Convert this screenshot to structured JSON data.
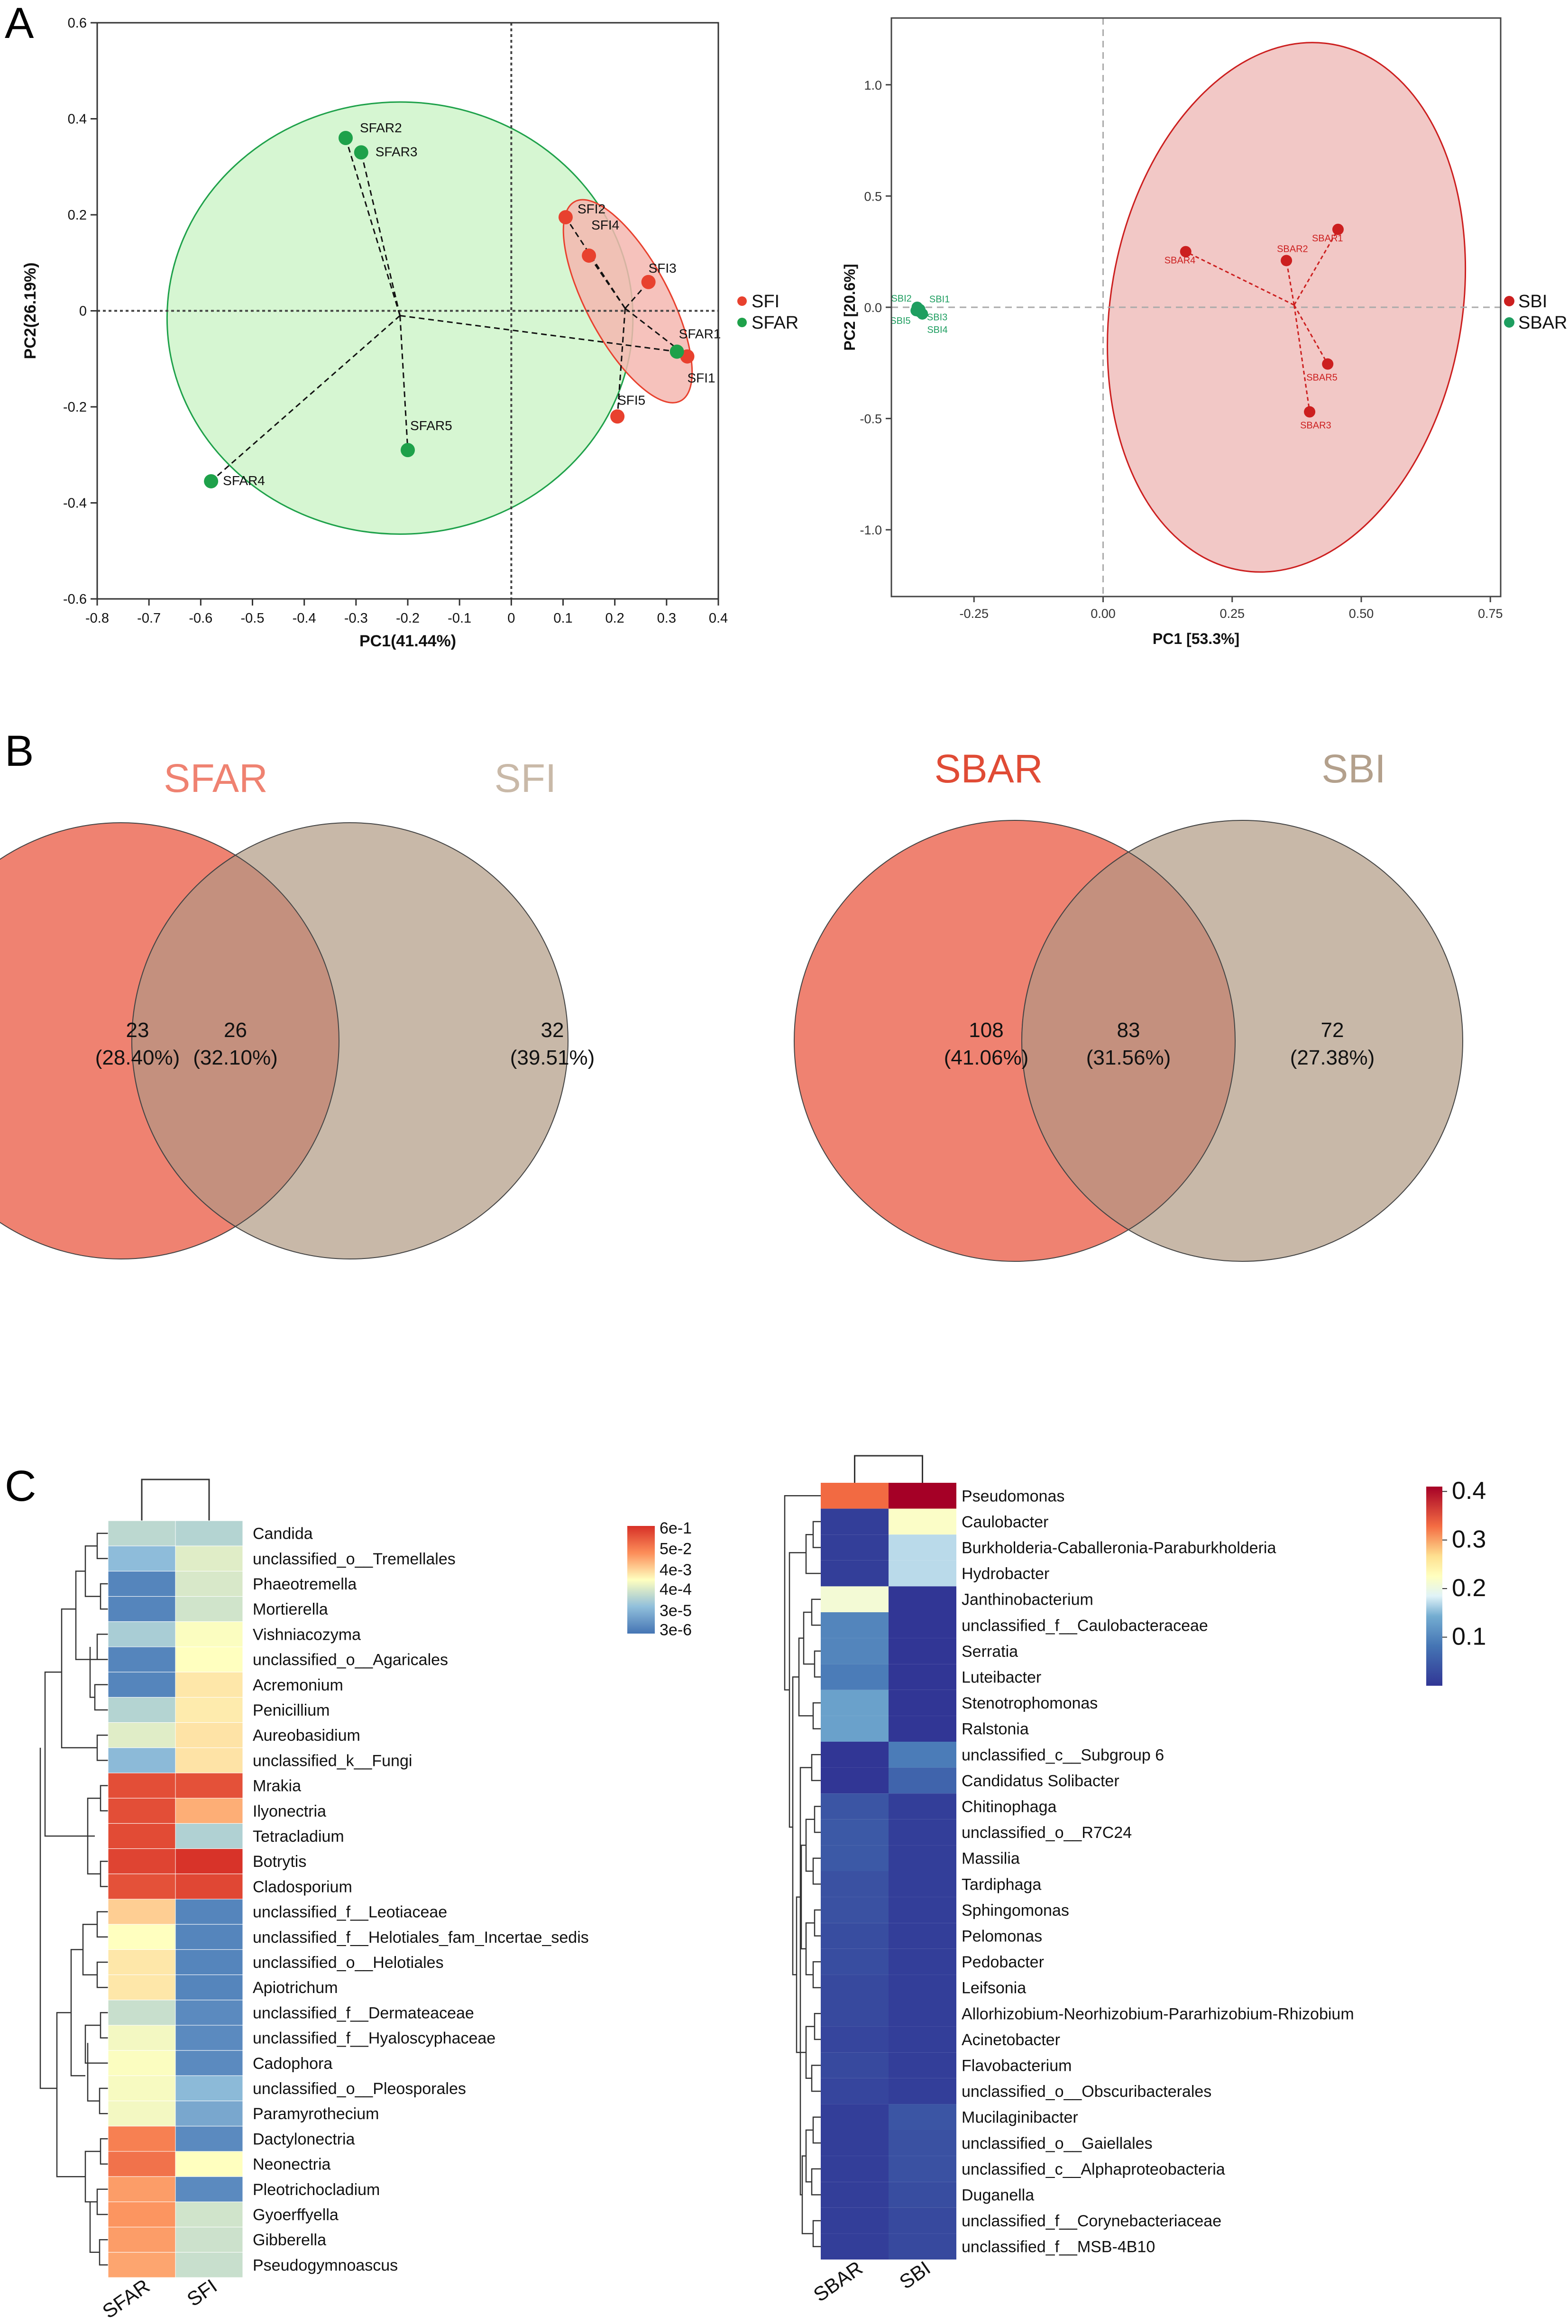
{
  "panel_labels": {
    "a": "A",
    "b": "B",
    "c": "C"
  },
  "colors": {
    "sfi": "#e8412e",
    "sfar": "#1ea14a",
    "sfi_fill": "#f4b7b0",
    "sfar_fill": "#d6f6d2",
    "sbi": "#cc1f1f",
    "sbar": "#1e9e60",
    "sbi_fill": "#f2c8c6",
    "venn_left": "#ef8271",
    "venn_right": "#c8b8a8",
    "venn_overlap": "#c4907e",
    "venn_sfar_title": "#ef8271",
    "venn_sfi_title": "#c9b9a8",
    "venn_sbar_title": "#e04b35",
    "venn_sbi_title": "#b3a08c"
  },
  "chart_data": [
    {
      "id": "pca_fungi",
      "type": "scatter",
      "xlabel": "PC1(41.44%)",
      "ylabel": "PC2(26.19%)",
      "xlim": [
        -0.8,
        0.4
      ],
      "ylim": [
        -0.6,
        0.6
      ],
      "xticks": [
        "-0.8",
        "-0.7",
        "-0.6",
        "-0.5",
        "-0.4",
        "-0.3",
        "-0.2",
        "-0.1",
        "0",
        "0.1",
        "0.2",
        "0.3",
        "0.4"
      ],
      "yticks": [
        "-0.6",
        "-0.4",
        "-0.2",
        "0",
        "0.2",
        "0.4",
        "0.6"
      ],
      "legend": [
        "SFI",
        "SFAR"
      ],
      "series": [
        {
          "name": "SFI",
          "points": [
            {
              "label": "SFI1",
              "x": 0.34,
              "y": -0.095
            },
            {
              "label": "SFI2",
              "x": 0.105,
              "y": 0.195
            },
            {
              "label": "SFI3",
              "x": 0.265,
              "y": 0.06
            },
            {
              "label": "SFI4",
              "x": 0.15,
              "y": 0.115
            },
            {
              "label": "SFI5",
              "x": 0.205,
              "y": -0.22
            }
          ],
          "centroid": {
            "x": 0.22,
            "y": 0.005
          },
          "ellipse": {
            "cx": 0.225,
            "cy": 0.02,
            "rx": 0.08,
            "ry": 0.235,
            "angle": 28
          }
        },
        {
          "name": "SFAR",
          "points": [
            {
              "label": "SFAR1",
              "x": 0.32,
              "y": -0.085
            },
            {
              "label": "SFAR2",
              "x": -0.32,
              "y": 0.36
            },
            {
              "label": "SFAR3",
              "x": -0.29,
              "y": 0.33
            },
            {
              "label": "SFAR4",
              "x": -0.58,
              "y": -0.355
            },
            {
              "label": "SFAR5",
              "x": -0.2,
              "y": -0.29
            }
          ],
          "centroid": {
            "x": -0.215,
            "y": -0.01
          },
          "ellipse": {
            "cx": -0.215,
            "cy": -0.015,
            "rx": 0.45,
            "ry": 0.45,
            "angle": 0
          }
        }
      ]
    },
    {
      "id": "pca_bacteria",
      "type": "scatter",
      "xlabel": "PC1 [53.3%]",
      "ylabel": "PC2 [20.6%]",
      "xlim": [
        -0.41,
        0.77
      ],
      "ylim": [
        -1.3,
        1.3
      ],
      "xticks": [
        "-0.25",
        "0.00",
        "0.25",
        "0.50",
        "0.75"
      ],
      "yticks": [
        "-1.0",
        "-0.5",
        "0.0",
        "0.5",
        "1.0"
      ],
      "legend": [
        "SBI",
        "SBAR"
      ],
      "series": [
        {
          "name": "SBAR",
          "points": [
            {
              "label": "SBAR1",
              "x": 0.455,
              "y": 0.35
            },
            {
              "label": "SBAR2",
              "x": 0.355,
              "y": 0.21
            },
            {
              "label": "SBAR3",
              "x": 0.4,
              "y": -0.47
            },
            {
              "label": "SBAR4",
              "x": 0.16,
              "y": 0.25
            },
            {
              "label": "SBAR5",
              "x": 0.435,
              "y": -0.255
            }
          ],
          "centroid": {
            "x": 0.37,
            "y": 0.01
          },
          "ellipse": {
            "cx": 0.355,
            "cy": 0.0,
            "rx": 0.34,
            "ry": 1.2,
            "angle": -10
          }
        },
        {
          "name": "SBI",
          "points": [
            {
              "label": "SBI1",
              "x": -0.355,
              "y": -0.01
            },
            {
              "label": "SBI2",
              "x": -0.36,
              "y": 0.0
            },
            {
              "label": "SBI3",
              "x": -0.355,
              "y": -0.02
            },
            {
              "label": "SBI4",
              "x": -0.35,
              "y": -0.03
            },
            {
              "label": "SBI5",
              "x": -0.362,
              "y": -0.015
            }
          ],
          "centroid": {
            "x": -0.357,
            "y": -0.015
          }
        }
      ]
    },
    {
      "id": "venn_fungi",
      "type": "venn",
      "sets": [
        "SFAR",
        "SFI"
      ],
      "regions": [
        {
          "label": "SFAR only",
          "count": "23",
          "percent": "(28.40%)"
        },
        {
          "label": "shared",
          "count": "26",
          "percent": "(32.10%)"
        },
        {
          "label": "SFI only",
          "count": "32",
          "percent": "(39.51%)"
        }
      ]
    },
    {
      "id": "venn_bacteria",
      "type": "venn",
      "sets": [
        "SBAR",
        "SBI"
      ],
      "regions": [
        {
          "label": "SBAR only",
          "count": "108",
          "percent": "(41.06%)"
        },
        {
          "label": "shared",
          "count": "83",
          "percent": "(31.56%)"
        },
        {
          "label": "SBI only",
          "count": "72",
          "percent": "(27.38%)"
        }
      ]
    },
    {
      "id": "heatmap_fungi",
      "type": "heatmap",
      "columns": [
        "SFAR",
        "SFI"
      ],
      "scale": "log10 relative abundance",
      "legend_ticks": [
        "6e-1",
        "5e-2",
        "4e-3",
        "4e-4",
        "3e-5",
        "3e-6"
      ],
      "legend_log10": [
        -0.22,
        -1.3,
        -2.4,
        -3.4,
        -4.52,
        -5.52
      ],
      "legend_range_log10": [
        -5.7,
        -0.1
      ],
      "rows": [
        {
          "name": "Candida",
          "values": [
            -3.75,
            -3.85
          ]
        },
        {
          "name": "unclassified_o__Tremellales",
          "values": [
            -4.35,
            -3.3
          ]
        },
        {
          "name": "Phaeotremella",
          "values": [
            -5.4,
            -3.4
          ]
        },
        {
          "name": "Mortierella",
          "values": [
            -5.4,
            -3.5
          ]
        },
        {
          "name": "Vishniacozyma",
          "values": [
            -4.0,
            -2.95
          ]
        },
        {
          "name": "unclassified_o__Agaricales",
          "values": [
            -5.4,
            -2.9
          ]
        },
        {
          "name": "Acremonium",
          "values": [
            -5.4,
            -2.6
          ]
        },
        {
          "name": "Penicillium",
          "values": [
            -3.85,
            -2.65
          ]
        },
        {
          "name": "Aureobasidium",
          "values": [
            -3.3,
            -2.55
          ]
        },
        {
          "name": "unclassified_k__Fungi",
          "values": [
            -4.4,
            -2.55
          ]
        },
        {
          "name": "Mrakia",
          "values": [
            -0.55,
            -0.6
          ]
        },
        {
          "name": "Ilyonectria",
          "values": [
            -0.55,
            -1.9
          ]
        },
        {
          "name": "Tetracladium",
          "values": [
            -0.5,
            -3.9
          ]
        },
        {
          "name": "Botrytis",
          "values": [
            -0.4,
            -0.15
          ]
        },
        {
          "name": "Cladosporium",
          "values": [
            -0.6,
            -0.45
          ]
        },
        {
          "name": "unclassified_f__Leotiaceae",
          "values": [
            -2.3,
            -5.4
          ]
        },
        {
          "name": "unclassified_f__Helotiales_fam_Incertae_sedis",
          "values": [
            -2.9,
            -5.4
          ]
        },
        {
          "name": "unclassified_o__Helotiales",
          "values": [
            -2.6,
            -5.4
          ]
        },
        {
          "name": "Apiotrichum",
          "values": [
            -2.6,
            -5.4
          ]
        },
        {
          "name": "unclassified_f__Dermateaceae",
          "values": [
            -3.6,
            -5.3
          ]
        },
        {
          "name": "unclassified_f__Hyaloscyphaceae",
          "values": [
            -3.05,
            -5.3
          ]
        },
        {
          "name": "Cadophora",
          "values": [
            -2.95,
            -5.3
          ]
        },
        {
          "name": "unclassified_o__Pleosporales",
          "values": [
            -3.0,
            -4.4
          ]
        },
        {
          "name": "Paramyrothecium",
          "values": [
            -3.05,
            -4.75
          ]
        },
        {
          "name": "Dactylonectria",
          "values": [
            -1.3,
            -5.3
          ]
        },
        {
          "name": "Neonectria",
          "values": [
            -1.1,
            -2.9
          ]
        },
        {
          "name": "Pleotrichocladium",
          "values": [
            -1.7,
            -5.3
          ]
        },
        {
          "name": "Gyoerffyella",
          "values": [
            -1.6,
            -3.5
          ]
        },
        {
          "name": "Gibberella",
          "values": [
            -1.7,
            -3.55
          ]
        },
        {
          "name": "Pseudogymnoascus",
          "values": [
            -1.8,
            -3.6
          ]
        }
      ]
    },
    {
      "id": "heatmap_bacteria",
      "type": "heatmap",
      "columns": [
        "SBAR",
        "SBI"
      ],
      "scale": "relative abundance",
      "legend_ticks": [
        "0.4",
        "0.3",
        "0.2",
        "0.1"
      ],
      "legend_values": [
        0.4,
        0.3,
        0.2,
        0.1
      ],
      "legend_range": [
        0.0,
        0.41
      ],
      "rows": [
        {
          "name": "Pseudomonas",
          "values": [
            0.33,
            0.41
          ]
        },
        {
          "name": "Caulobacter",
          "values": [
            0.01,
            0.22
          ]
        },
        {
          "name": "Burkholderia-Caballeronia-Paraburkholderia",
          "values": [
            0.01,
            0.17
          ]
        },
        {
          "name": "Hydrobacter",
          "values": [
            0.01,
            0.17
          ]
        },
        {
          "name": "Janthinobacterium",
          "values": [
            0.21,
            0.0
          ]
        },
        {
          "name": "unclassified_f__Caulobacteraceae",
          "values": [
            0.1,
            0.0
          ]
        },
        {
          "name": "Serratia",
          "values": [
            0.1,
            0.0
          ]
        },
        {
          "name": "Luteibacter",
          "values": [
            0.09,
            0.0
          ]
        },
        {
          "name": "Stenotrophomonas",
          "values": [
            0.13,
            0.0
          ]
        },
        {
          "name": "Ralstonia",
          "values": [
            0.13,
            0.0
          ]
        },
        {
          "name": "unclassified_c__Subgroup 6",
          "values": [
            0.0,
            0.09
          ]
        },
        {
          "name": "Candidatus Solibacter",
          "values": [
            0.0,
            0.06
          ]
        },
        {
          "name": "Chitinophaga",
          "values": [
            0.04,
            0.01
          ]
        },
        {
          "name": "unclassified_o__R7C24",
          "values": [
            0.045,
            0.01
          ]
        },
        {
          "name": "Massilia",
          "values": [
            0.045,
            0.01
          ]
        },
        {
          "name": "Tardiphaga",
          "values": [
            0.035,
            0.01
          ]
        },
        {
          "name": "Sphingomonas",
          "values": [
            0.035,
            0.01
          ]
        },
        {
          "name": "Pelomonas",
          "values": [
            0.03,
            0.01
          ]
        },
        {
          "name": "Pedobacter",
          "values": [
            0.03,
            0.01
          ]
        },
        {
          "name": "Leifsonia",
          "values": [
            0.025,
            0.01
          ]
        },
        {
          "name": "Allorhizobium-Neorhizobium-Pararhizobium-Rhizobium",
          "values": [
            0.025,
            0.01
          ]
        },
        {
          "name": "Acinetobacter",
          "values": [
            0.02,
            0.01
          ]
        },
        {
          "name": "Flavobacterium",
          "values": [
            0.025,
            0.01
          ]
        },
        {
          "name": "unclassified_o__Obscuribacterales",
          "values": [
            0.02,
            0.01
          ]
        },
        {
          "name": "Mucilaginibacter",
          "values": [
            0.01,
            0.04
          ]
        },
        {
          "name": "unclassified_o__Gaiellales",
          "values": [
            0.01,
            0.035
          ]
        },
        {
          "name": "unclassified_c__Alphaproteobacteria",
          "values": [
            0.01,
            0.035
          ]
        },
        {
          "name": "Duganella",
          "values": [
            0.01,
            0.03
          ]
        },
        {
          "name": "unclassified_f__Corynebacteriaceae",
          "values": [
            0.01,
            0.025
          ]
        },
        {
          "name": "unclassified_f__MSB-4B10",
          "values": [
            0.01,
            0.025
          ]
        }
      ]
    }
  ]
}
